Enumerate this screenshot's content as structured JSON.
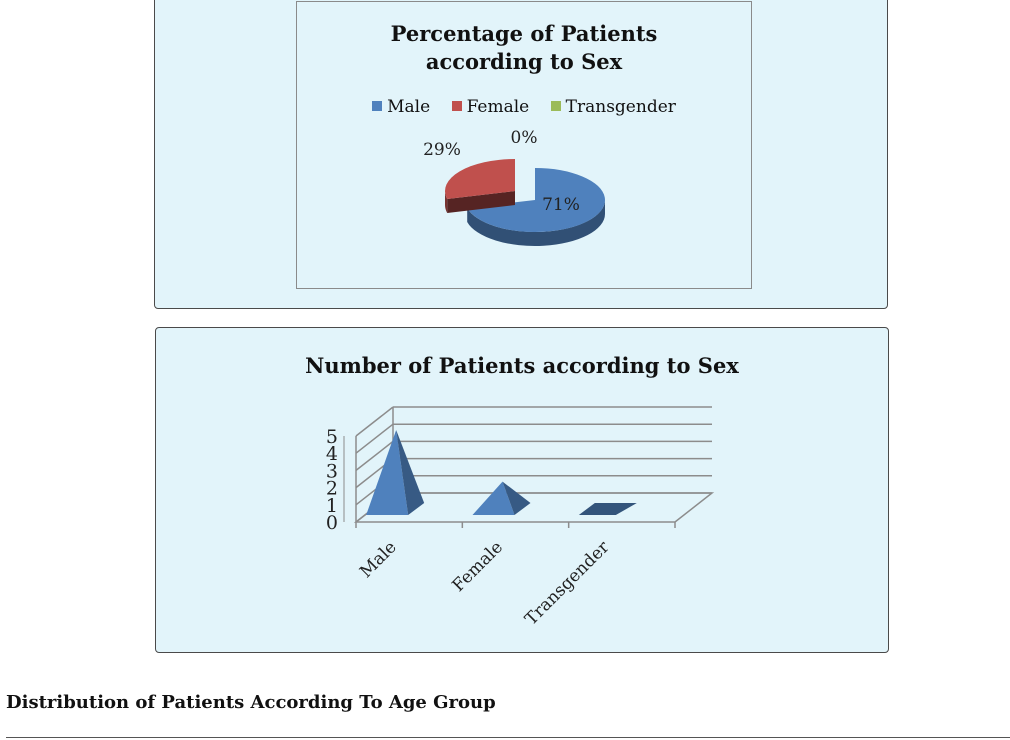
{
  "chart_data": [
    {
      "type": "pie",
      "title_lines": [
        "Percentage of Patients",
        "according to Sex"
      ],
      "legend": [
        {
          "label": "Male",
          "color": "#4f81bd"
        },
        {
          "label": "Female",
          "color": "#c0504d"
        },
        {
          "label": "Transgender",
          "color": "#9bbb59"
        }
      ],
      "slices": [
        {
          "label": "Male",
          "value": 71,
          "text": "71%",
          "color": "#4f81bd"
        },
        {
          "label": "Female",
          "value": 29,
          "text": "29%",
          "color": "#c0504d"
        },
        {
          "label": "Transgender",
          "value": 0,
          "text": "0%",
          "color": "#9bbb59"
        }
      ],
      "legend_position": "top",
      "style": "3d-exploded"
    },
    {
      "type": "bar",
      "style": "3d-pyramid",
      "title": "Number of Patients according to Sex",
      "categories": [
        "Male",
        "Female",
        "Transgender"
      ],
      "values": [
        5,
        2,
        0
      ],
      "ylim": [
        0,
        5
      ],
      "yticks": [
        "0",
        "1",
        "2",
        "3",
        "4",
        "5"
      ],
      "grid": true,
      "color": "#4f81bd"
    }
  ],
  "section_heading": "Distribution of Patients According To Age Group"
}
